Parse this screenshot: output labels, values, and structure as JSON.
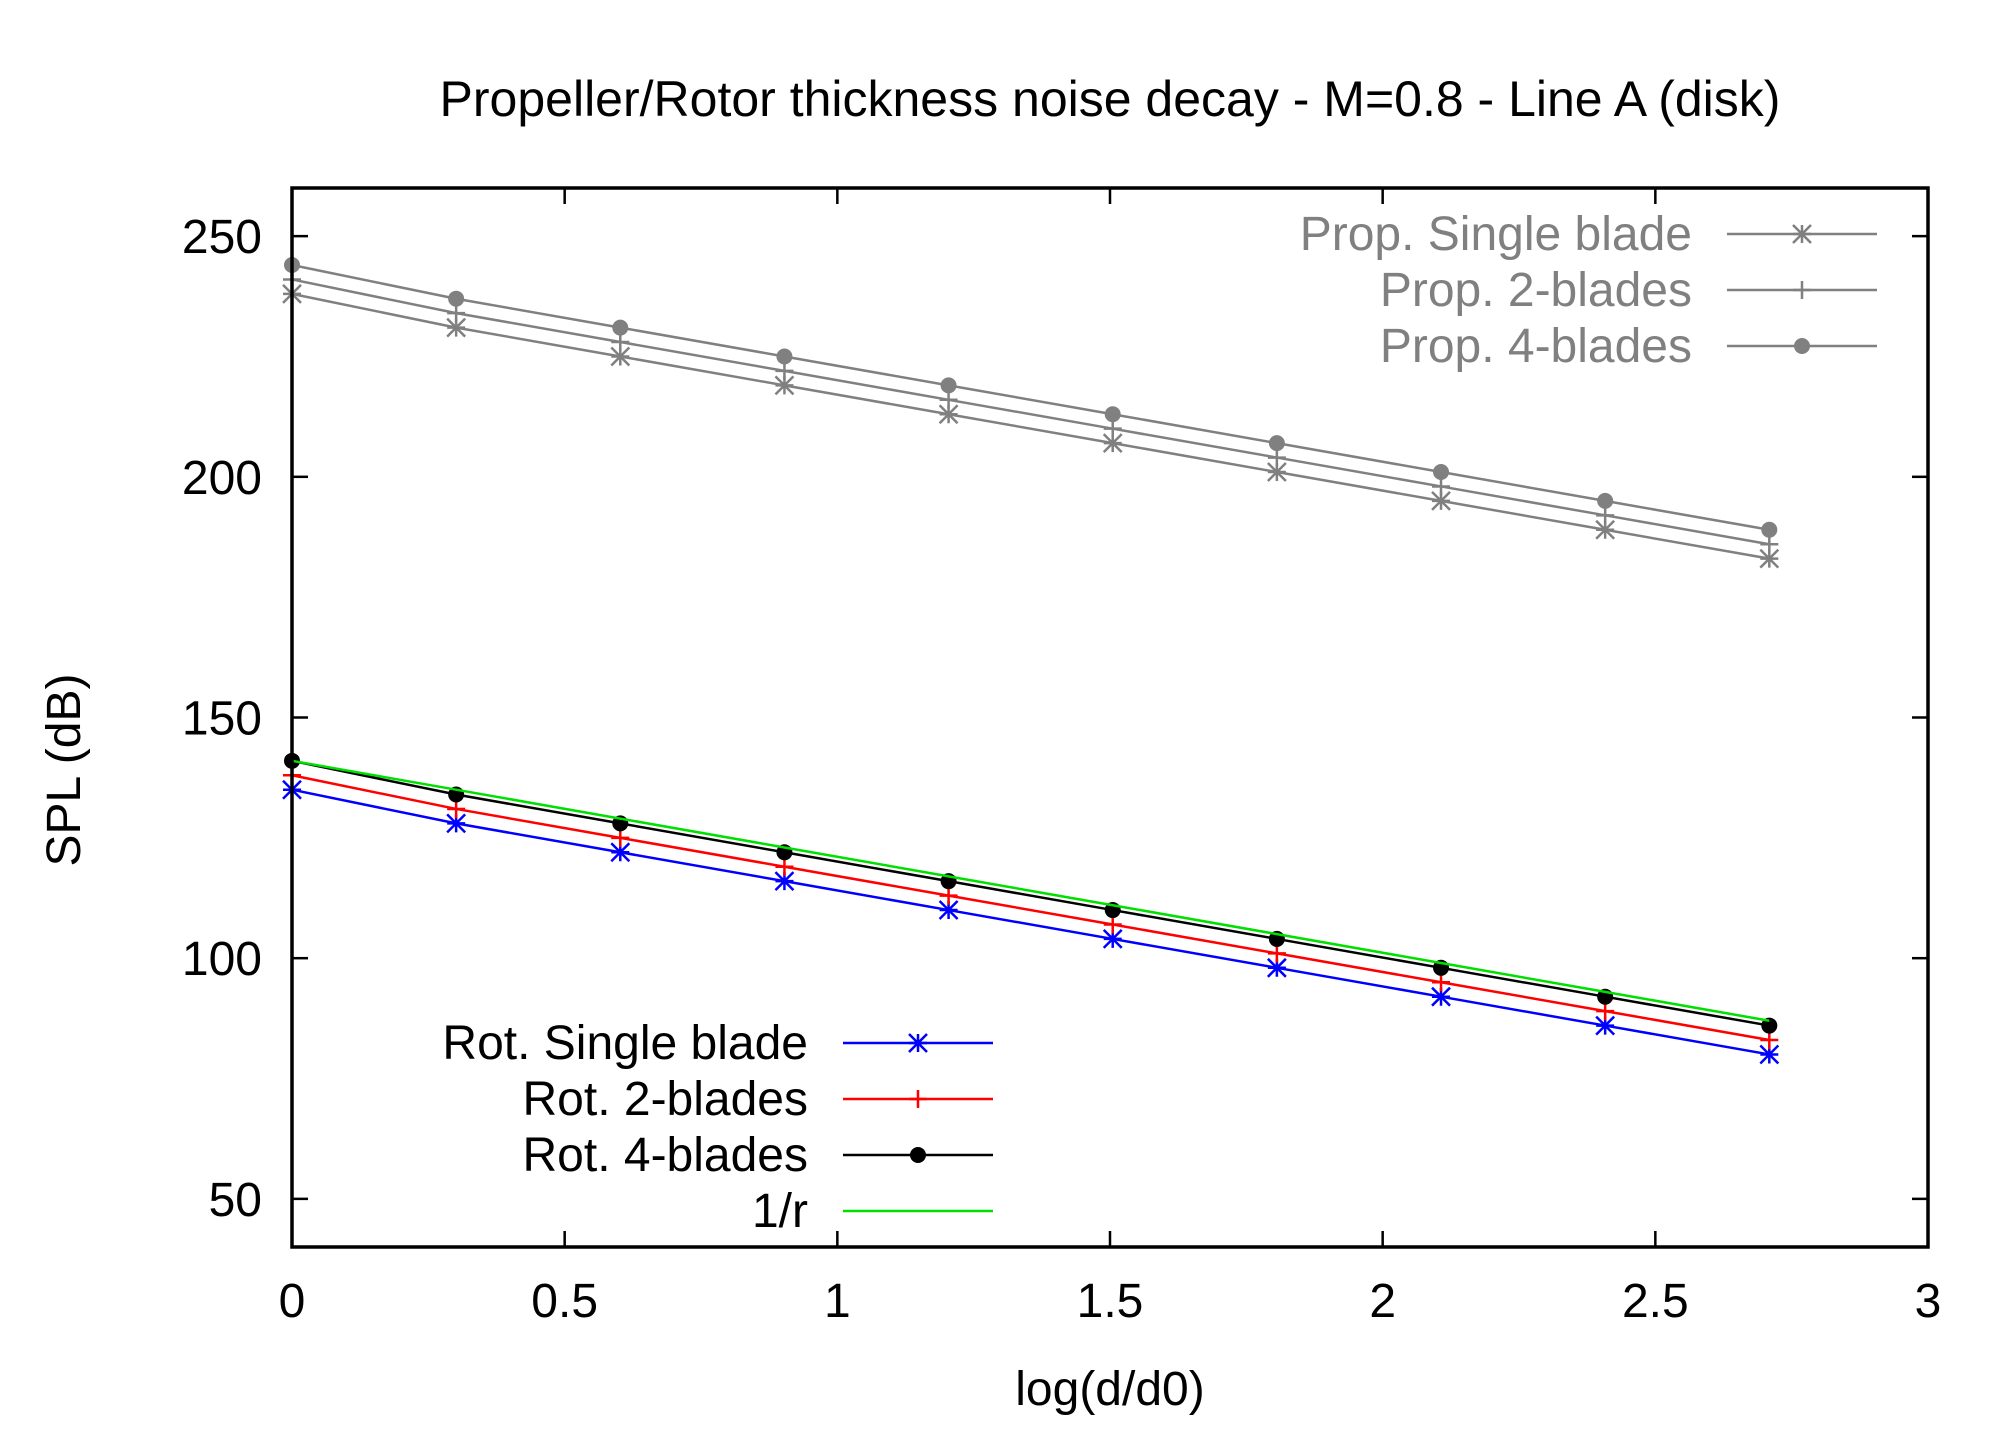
{
  "chart_data": {
    "type": "line",
    "title": "Propeller/Rotor thickness noise decay - M=0.8 - Line A (disk)",
    "xlabel": "log(d/d0)",
    "ylabel": "SPL (dB)",
    "xlim": [
      0,
      3
    ],
    "ylim": [
      40,
      260
    ],
    "x_ticks": [
      0,
      0.5,
      1,
      1.5,
      2,
      2.5,
      3
    ],
    "x_tick_labels": [
      "0",
      "0.5",
      "1",
      "1.5",
      "2",
      "2.5",
      "3"
    ],
    "y_ticks": [
      50,
      100,
      150,
      200,
      250
    ],
    "y_tick_labels": [
      "50",
      "100",
      "150",
      "200",
      "250"
    ],
    "grid": false,
    "x": [
      0,
      0.301,
      0.602,
      0.903,
      1.204,
      1.505,
      1.806,
      2.107,
      2.408,
      2.709
    ],
    "series": [
      {
        "name": "Prop. Single blade",
        "color": "#808080",
        "marker": "star",
        "legend": "top-right",
        "values": [
          238,
          231,
          225,
          219,
          213,
          207,
          201,
          195,
          189,
          183
        ]
      },
      {
        "name": "Prop. 2-blades",
        "color": "#808080",
        "marker": "plus",
        "legend": "top-right",
        "values": [
          241,
          234,
          228,
          222,
          216,
          210,
          204,
          198,
          192,
          186
        ]
      },
      {
        "name": "Prop. 4-blades",
        "color": "#808080",
        "marker": "dot",
        "legend": "top-right",
        "values": [
          244,
          237,
          231,
          225,
          219,
          213,
          207,
          201,
          195,
          189
        ]
      },
      {
        "name": "Rot. Single blade",
        "color": "#0000ff",
        "marker": "star",
        "legend": "bottom-left",
        "values": [
          135,
          128,
          122,
          116,
          110,
          104,
          98,
          92,
          86,
          80
        ]
      },
      {
        "name": "Rot. 2-blades",
        "color": "#ff0000",
        "marker": "plus",
        "legend": "bottom-left",
        "values": [
          138,
          131,
          125,
          119,
          113,
          107,
          101,
          95,
          89,
          83
        ]
      },
      {
        "name": "Rot. 4-blades",
        "color": "#000000",
        "marker": "dot",
        "legend": "bottom-left",
        "values": [
          141,
          134,
          128,
          122,
          116,
          110,
          104,
          98,
          92,
          86
        ]
      },
      {
        "name": "1/r",
        "color": "#00e000",
        "marker": "none",
        "legend": "bottom-left",
        "values": [
          141,
          135,
          129,
          123,
          117,
          111,
          105,
          99,
          93,
          87
        ]
      }
    ]
  }
}
